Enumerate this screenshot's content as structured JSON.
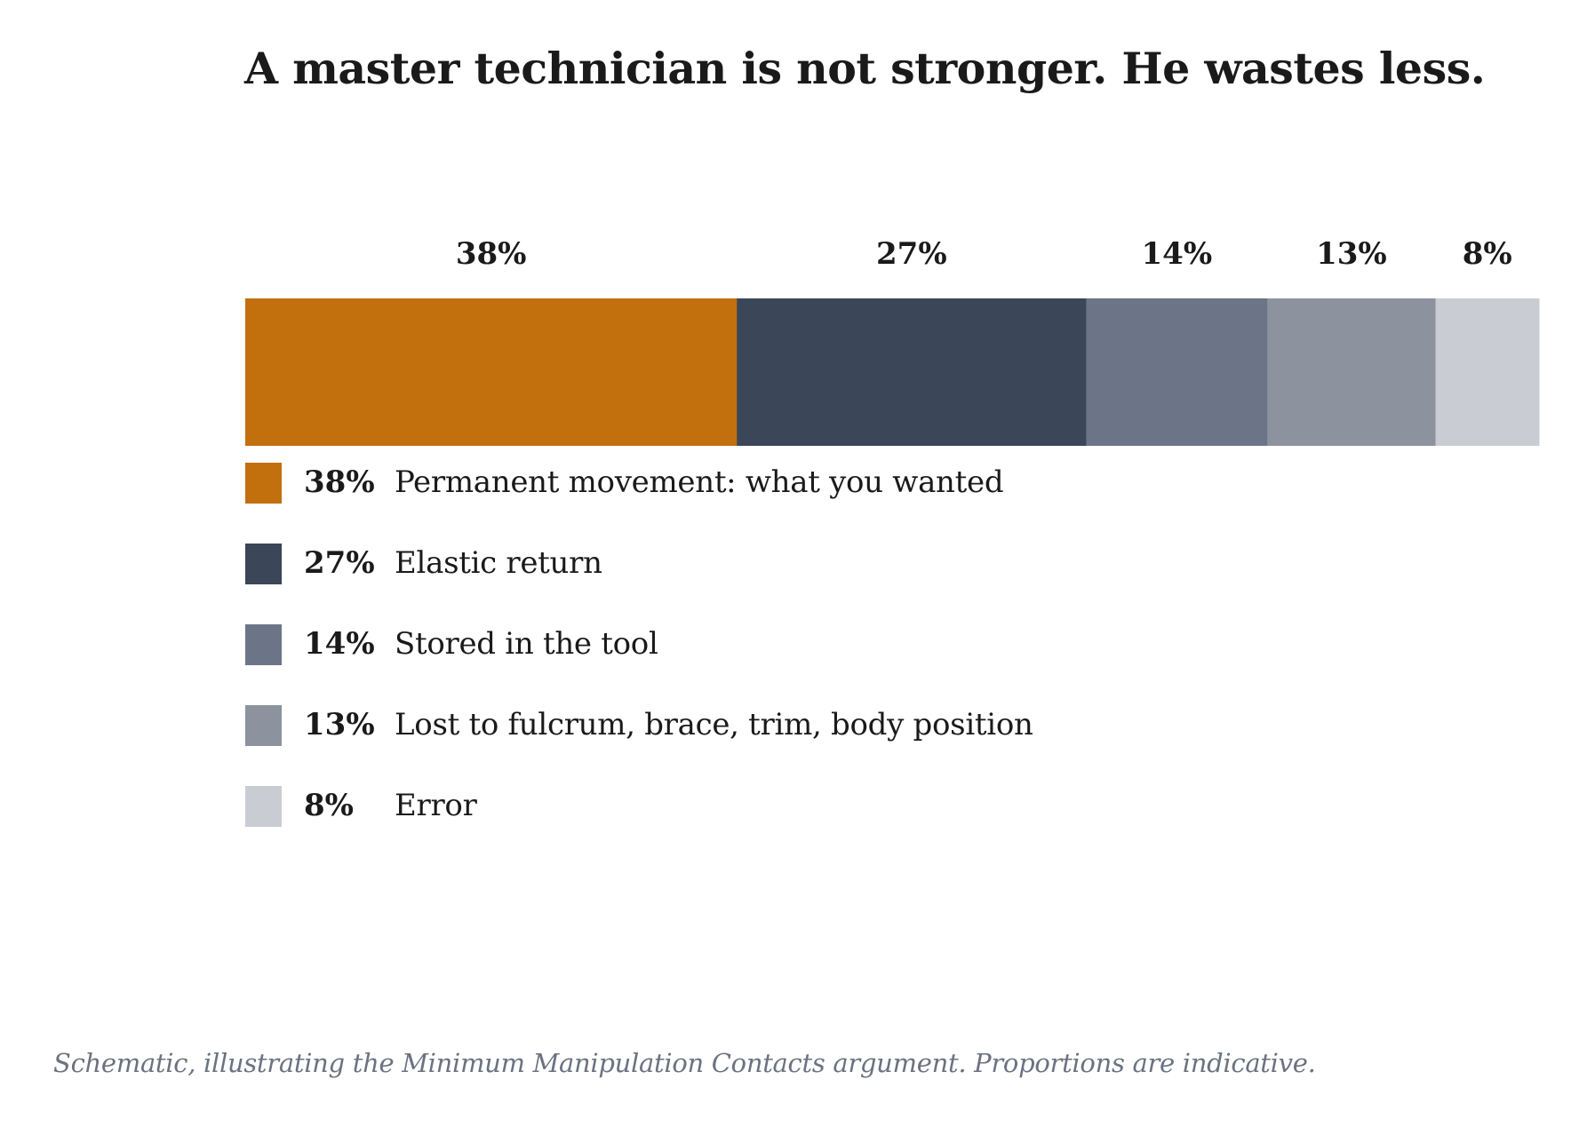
{
  "title": "A master technician is not stronger. He wastes less.",
  "footnote": "Schematic, illustrating the Minimum Manipulation Contacts argument. Proportions are indicative.",
  "chart_data": {
    "type": "bar",
    "orientation": "horizontal-stacked",
    "title": "A master technician is not stronger. He wastes less.",
    "xlim": [
      0,
      100
    ],
    "unit": "%",
    "grid": false,
    "legend_position": "bottom-left",
    "series": [
      {
        "name": "Permanent movement: what you wanted",
        "value": 38,
        "label": "38%",
        "color": "#c2700d"
      },
      {
        "name": "Elastic return",
        "value": 27,
        "label": "27%",
        "color": "#3b4658"
      },
      {
        "name": "Stored in the tool",
        "value": 14,
        "label": "14%",
        "color": "#6b7587"
      },
      {
        "name": "Lost to fulcrum, brace, trim, body position",
        "value": 13,
        "label": "13%",
        "color": "#8d939e"
      },
      {
        "name": "Error",
        "value": 8,
        "label": "8%",
        "color": "#c9ccd3"
      }
    ]
  }
}
